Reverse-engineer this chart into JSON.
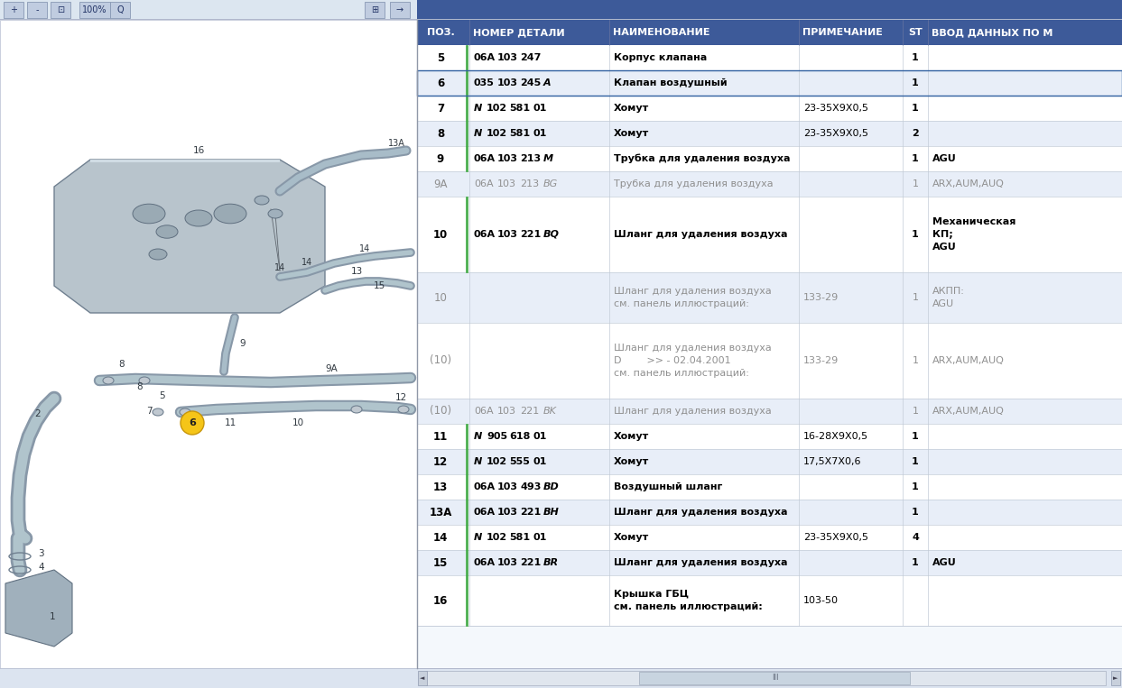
{
  "header_bg": "#3d5a99",
  "header_text_color": "#ffffff",
  "row_bg_alt": "#e8eef8",
  "row_bg_white": "#ffffff",
  "text_active": "#000000",
  "text_inactive": "#909090",
  "border_color": "#c0c8d8",
  "highlight_border": "#3d6b9e",
  "green_line": "#4caf50",
  "toolbar_bg": "#dce4f0",
  "left_panel_bg": "#ffffff",
  "outer_bg": "#d6dde8",
  "figw": 12.43,
  "figh": 7.63,
  "dpi": 100,
  "rows": [
    {
      "pos": "5",
      "active": true,
      "part": "06A 103 247",
      "prefix": "",
      "suffix": "",
      "name": "Корпус клапана",
      "name_bold": true,
      "note": "",
      "st": "1",
      "extra": "",
      "border": false,
      "bg": "#ffffff",
      "rh": 1
    },
    {
      "pos": "6",
      "active": true,
      "part": "035 103 245",
      "prefix": "",
      "suffix": "A",
      "name": "Клапан воздушный",
      "name_bold": true,
      "note": "",
      "st": "1",
      "extra": "",
      "border": true,
      "bg": "#e8eef8",
      "rh": 1
    },
    {
      "pos": "7",
      "active": true,
      "part": "102 581 01",
      "prefix": "N",
      "suffix": "",
      "name": "Хомут",
      "name_bold": true,
      "note": "23-35X9X0,5",
      "st": "1",
      "extra": "",
      "border": false,
      "bg": "#ffffff",
      "rh": 1
    },
    {
      "pos": "8",
      "active": true,
      "part": "102 581 01",
      "prefix": "N",
      "suffix": "",
      "name": "Хомут",
      "name_bold": true,
      "note": "23-35X9X0,5",
      "st": "2",
      "extra": "",
      "border": false,
      "bg": "#e8eef8",
      "rh": 1
    },
    {
      "pos": "9",
      "active": true,
      "part": "06A 103 213",
      "prefix": "",
      "suffix": "M",
      "name": "Трубка для удаления воздуха",
      "name_bold": true,
      "note": "",
      "st": "1",
      "extra": "AGU",
      "border": false,
      "bg": "#ffffff",
      "rh": 1
    },
    {
      "pos": "9A",
      "active": false,
      "part": "06A 103 213",
      "prefix": "",
      "suffix": "BG",
      "name": "Трубка для удаления воздуха",
      "name_bold": false,
      "note": "",
      "st": "1",
      "extra": "ARX,AUM,AUQ",
      "border": false,
      "bg": "#e8eef8",
      "rh": 1
    },
    {
      "pos": "10",
      "active": true,
      "part": "06A 103 221",
      "prefix": "",
      "suffix": "BQ",
      "name": "Шланг для удаления воздуха",
      "name_bold": true,
      "note": "",
      "st": "1",
      "extra": "Механическая\nКП;\nAGU",
      "border": false,
      "bg": "#ffffff",
      "rh": 3
    },
    {
      "pos": "10",
      "active": false,
      "part": "",
      "prefix": "",
      "suffix": "",
      "name": "Шланг для удаления воздуха\nсм. панель иллюстраций:",
      "name_bold": false,
      "note": "133-29",
      "st": "1",
      "extra": "АКПП:\nAGU",
      "border": false,
      "bg": "#e8eef8",
      "rh": 2
    },
    {
      "pos": "(10)",
      "active": false,
      "part": "",
      "prefix": "",
      "suffix": "",
      "name": "Шланг для удаления воздуха\nD        >> - 02.04.2001\nсм. панель иллюстраций:",
      "name_bold": false,
      "note": "133-29",
      "st": "1",
      "extra": "ARX,AUM,AUQ",
      "border": false,
      "bg": "#ffffff",
      "rh": 3
    },
    {
      "pos": "(10)",
      "active": false,
      "part": "06A 103 221",
      "prefix": "",
      "suffix": "BK",
      "name": "Шланг для удаления воздуха",
      "name_bold": false,
      "note": "",
      "st": "1",
      "extra": "ARX,AUM,AUQ",
      "border": false,
      "bg": "#e8eef8",
      "rh": 1
    },
    {
      "pos": "11",
      "active": true,
      "part": "905 618 01",
      "prefix": "N",
      "suffix": "",
      "name": "Хомут",
      "name_bold": true,
      "note": "16-28X9X0,5",
      "st": "1",
      "extra": "",
      "border": false,
      "bg": "#ffffff",
      "rh": 1
    },
    {
      "pos": "12",
      "active": true,
      "part": "102 555 01",
      "prefix": "N",
      "suffix": "",
      "name": "Хомут",
      "name_bold": true,
      "note": "17,5X7X0,6",
      "st": "1",
      "extra": "",
      "border": false,
      "bg": "#e8eef8",
      "rh": 1
    },
    {
      "pos": "13",
      "active": true,
      "part": "06A 103 493",
      "prefix": "",
      "suffix": "BD",
      "name": "Воздушный шланг",
      "name_bold": true,
      "note": "",
      "st": "1",
      "extra": "",
      "border": false,
      "bg": "#ffffff",
      "rh": 1
    },
    {
      "pos": "13A",
      "active": true,
      "part": "06A 103 221",
      "prefix": "",
      "suffix": "BH",
      "name": "Шланг для удаления воздуха",
      "name_bold": true,
      "note": "",
      "st": "1",
      "extra": "",
      "border": false,
      "bg": "#e8eef8",
      "rh": 1
    },
    {
      "pos": "14",
      "active": true,
      "part": "102 581 01",
      "prefix": "N",
      "suffix": "",
      "name": "Хомут",
      "name_bold": true,
      "note": "23-35X9X0,5",
      "st": "4",
      "extra": "",
      "border": false,
      "bg": "#ffffff",
      "rh": 1
    },
    {
      "pos": "15",
      "active": true,
      "part": "06A 103 221",
      "prefix": "",
      "suffix": "BR",
      "name": "Шланг для удаления воздуха",
      "name_bold": true,
      "note": "",
      "st": "1",
      "extra": "AGU",
      "border": false,
      "bg": "#e8eef8",
      "rh": 1
    },
    {
      "pos": "16",
      "active": true,
      "part": "",
      "prefix": "",
      "suffix": "",
      "name": "Крышка ГБЦ\nсм. панель иллюстраций:",
      "name_bold": true,
      "note": "103-50",
      "st": "",
      "extra": "",
      "border": false,
      "bg": "#ffffff",
      "rh": 2
    }
  ]
}
